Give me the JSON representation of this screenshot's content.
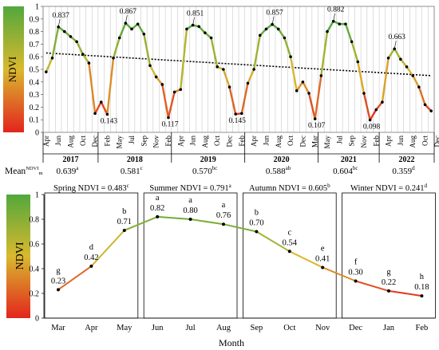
{
  "chart_data": [
    {
      "type": "line",
      "ylabel": "NDVI",
      "ylim": [
        0,
        1
      ],
      "yticks": [
        "0",
        "0.1",
        "0.2",
        "0.3",
        "0.4",
        "0.5",
        "0.6",
        "0.7",
        "0.8",
        "0.9",
        "1"
      ],
      "x_labels": [
        "Apr",
        "Jun",
        "Aug",
        "Oct",
        "Dec",
        "Feb",
        "May",
        "Jul",
        "Sep",
        "Nov",
        "Feb",
        "Apr",
        "Jun",
        "Aug",
        "Oct",
        "Dec",
        "Feb",
        "Apr",
        "Jun",
        "Aug",
        "Oct",
        "Dec",
        "Mar",
        "May",
        "Jul",
        "Sep",
        "Nov",
        "Feb",
        "Apr",
        "Jun",
        "Aug",
        "Oct",
        "Dec"
      ],
      "years": [
        "2017",
        "2018",
        "2019",
        "2020",
        "2021",
        "2022"
      ],
      "mean_label": "Mean",
      "mean_label_sup": "NDVI",
      "mean_label_sub": "m",
      "means": [
        {
          "value": "0.639",
          "sup": "a"
        },
        {
          "value": "0.581",
          "sup": "c"
        },
        {
          "value": "0.570",
          "sup": "bc"
        },
        {
          "value": "0.588",
          "sup": "ab"
        },
        {
          "value": "0.604",
          "sup": "bc"
        },
        {
          "value": "0.359",
          "sup": "d"
        }
      ],
      "series": [
        {
          "values": [
            0.48,
            0.59,
            0.837,
            0.8,
            0.76,
            0.72,
            0.62,
            0.55,
            0.15,
            0.24,
            0.143,
            0.59,
            0.75,
            0.867,
            0.82,
            0.86,
            0.78,
            0.53,
            0.44,
            0.38,
            0.117,
            0.32,
            0.34,
            0.82,
            0.851,
            0.84,
            0.79,
            0.75,
            0.52,
            0.5,
            0.36,
            0.145,
            0.15,
            0.39,
            0.5,
            0.77,
            0.82,
            0.857,
            0.82,
            0.75,
            0.6,
            0.33,
            0.4,
            0.31,
            0.107,
            0.45,
            0.8,
            0.882,
            0.86,
            0.86,
            0.72,
            0.56,
            0.31,
            0.098,
            0.18,
            0.24,
            0.59,
            0.663,
            0.58,
            0.52,
            0.45,
            0.36,
            0.22,
            0.17
          ]
        }
      ],
      "peak_labels": [
        {
          "index": 2,
          "text": "0.837"
        },
        {
          "index": 13,
          "text": "0.867"
        },
        {
          "index": 24,
          "text": "0.851"
        },
        {
          "index": 37,
          "text": "0.857"
        },
        {
          "index": 47,
          "text": "0.882"
        },
        {
          "index": 57,
          "text": "0.663"
        }
      ],
      "trough_labels": [
        {
          "index": 10,
          "text": "0.143"
        },
        {
          "index": 20,
          "text": "0.117"
        },
        {
          "index": 31,
          "text": "0.145"
        },
        {
          "index": 44,
          "text": "0.107"
        },
        {
          "index": 53,
          "text": "0.098"
        }
      ],
      "trend": {
        "start": 0.63,
        "end": 0.45
      }
    },
    {
      "type": "line",
      "ylabel": "NDVI",
      "xlabel": "Month",
      "ylim": [
        0,
        1
      ],
      "yticks": [
        "0",
        "0.2",
        "0.4",
        "0.6",
        "0.8",
        "1"
      ],
      "categories": [
        "Mar",
        "Apr",
        "May",
        "Jun",
        "Jul",
        "Aug",
        "Sep",
        "Oct",
        "Nov",
        "Dec",
        "Jan",
        "Feb"
      ],
      "values": [
        0.23,
        0.42,
        0.71,
        0.82,
        0.8,
        0.76,
        0.7,
        0.54,
        0.41,
        0.3,
        0.22,
        0.18
      ],
      "value_labels": [
        "0.23",
        "0.42",
        "0.71",
        "0.82",
        "0.80",
        "0.76",
        "0.70",
        "0.54",
        "0.41",
        "0.30",
        "0.22",
        "0.18"
      ],
      "letters": [
        "g",
        "d",
        "b",
        "a",
        "a",
        "a",
        "b",
        "c",
        "e",
        "f",
        "g",
        "h"
      ],
      "seasons": [
        {
          "label": "Spring NDVI = 0.483",
          "sup": "c"
        },
        {
          "label": "Summer NDVI = 0.791",
          "sup": "a"
        },
        {
          "label": "Autumn NDVI = 0.605",
          "sup": "b"
        },
        {
          "label": "Winter NDVI = 0.241",
          "sup": "d"
        }
      ]
    }
  ]
}
